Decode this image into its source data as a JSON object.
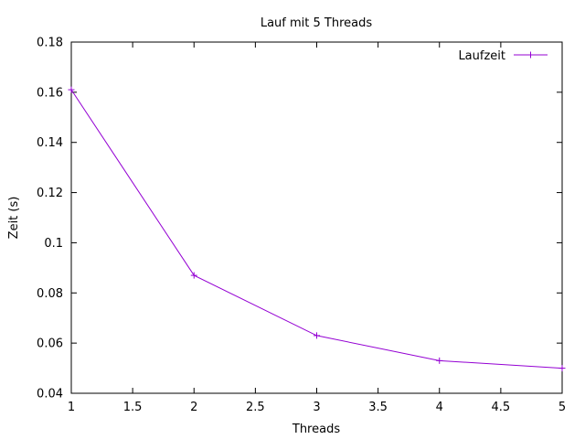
{
  "chart_data": {
    "type": "line",
    "title": "Lauf mit 5 Threads",
    "xlabel": "Threads",
    "ylabel": "Zeit (s)",
    "xlim": [
      1,
      5
    ],
    "ylim": [
      0.04,
      0.18
    ],
    "xticks": [
      "1",
      "1.5",
      "2",
      "2.5",
      "3",
      "3.5",
      "4",
      "4.5",
      "5"
    ],
    "yticks": [
      "0.04",
      "0.06",
      "0.08",
      "0.1",
      "0.12",
      "0.14",
      "0.16",
      "0.18"
    ],
    "grid": false,
    "legend_position": "top-right",
    "series": [
      {
        "name": "Laufzeit",
        "color": "#9400d3",
        "marker": "plus",
        "x": [
          1,
          2,
          3,
          4,
          5
        ],
        "y": [
          0.161,
          0.087,
          0.063,
          0.053,
          0.05
        ]
      }
    ]
  }
}
